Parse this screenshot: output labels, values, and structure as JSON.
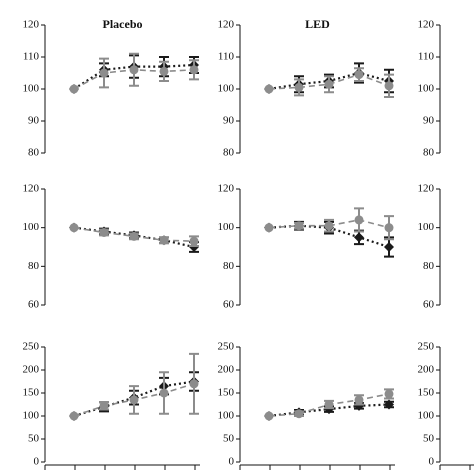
{
  "chart_data": [
    {
      "type": "line",
      "title": "Placebo",
      "ylim": [
        80,
        120
      ],
      "yticks": [
        80,
        90,
        100,
        110,
        120
      ],
      "series": [
        {
          "color": "#1a1a1a",
          "marker": "diamond",
          "dash": "dotted",
          "values": [
            100,
            106,
            107,
            107,
            107.5
          ],
          "errors": [
            0,
            2,
            3.5,
            3,
            2.5
          ]
        },
        {
          "color": "#8c8c8c",
          "marker": "circle",
          "dash": "dashed",
          "values": [
            100,
            105,
            106,
            105.5,
            106
          ],
          "errors": [
            0,
            4.5,
            5,
            3,
            3
          ]
        }
      ]
    },
    {
      "type": "line",
      "title": "LED",
      "ylim": [
        80,
        120
      ],
      "yticks": [
        80,
        90,
        100,
        110,
        120
      ],
      "series": [
        {
          "color": "#1a1a1a",
          "marker": "diamond",
          "dash": "dotted",
          "values": [
            100,
            101.5,
            102.5,
            105,
            102.5
          ],
          "errors": [
            0,
            2.5,
            2,
            3,
            3.5
          ]
        },
        {
          "color": "#8c8c8c",
          "marker": "circle",
          "dash": "dashed",
          "values": [
            100,
            100.5,
            101.5,
            104.5,
            101
          ],
          "errors": [
            0,
            2.5,
            2.5,
            2,
            3.5
          ]
        }
      ]
    },
    {
      "type": "axis",
      "ylim": [
        80,
        120
      ],
      "yticks": [
        80,
        90,
        100,
        110,
        120
      ]
    },
    {
      "type": "line",
      "ylim": [
        60,
        120
      ],
      "yticks": [
        60,
        80,
        100,
        120
      ],
      "series": [
        {
          "color": "#1a1a1a",
          "marker": "diamond",
          "dash": "dotted",
          "values": [
            100,
            98,
            96,
            93.5,
            90
          ],
          "errors": [
            0,
            1.5,
            1.5,
            1.5,
            2.5
          ]
        },
        {
          "color": "#8c8c8c",
          "marker": "circle",
          "dash": "dashed",
          "values": [
            100,
            97.5,
            95.5,
            93.5,
            93
          ],
          "errors": [
            0,
            1.5,
            1.5,
            1.5,
            2.5
          ]
        }
      ]
    },
    {
      "type": "line",
      "ylim": [
        60,
        120
      ],
      "yticks": [
        60,
        80,
        100,
        120
      ],
      "series": [
        {
          "color": "#1a1a1a",
          "marker": "diamond",
          "dash": "dotted",
          "values": [
            100,
            101,
            100,
            95,
            90
          ],
          "errors": [
            0,
            2,
            3,
            3.5,
            5
          ]
        },
        {
          "color": "#8c8c8c",
          "marker": "circle",
          "dash": "dashed",
          "values": [
            100,
            101,
            101,
            104,
            100
          ],
          "errors": [
            0,
            1.5,
            3,
            6,
            6
          ]
        }
      ]
    },
    {
      "type": "axis",
      "ylim": [
        60,
        120
      ],
      "yticks": [
        60,
        80,
        100,
        120
      ]
    },
    {
      "type": "line",
      "ylim": [
        0,
        250
      ],
      "yticks": [
        0,
        50,
        100,
        150,
        200,
        250
      ],
      "series": [
        {
          "color": "#1a1a1a",
          "marker": "diamond",
          "dash": "dotted",
          "values": [
            100,
            120,
            140,
            165,
            175
          ],
          "errors": [
            0,
            10,
            15,
            18,
            20
          ]
        },
        {
          "color": "#8c8c8c",
          "marker": "circle",
          "dash": "dashed",
          "values": [
            100,
            122,
            135,
            150,
            170
          ],
          "errors": [
            0,
            8,
            30,
            45,
            65
          ]
        }
      ]
    },
    {
      "type": "line",
      "ylim": [
        0,
        250
      ],
      "yticks": [
        0,
        50,
        100,
        150,
        200,
        250
      ],
      "series": [
        {
          "color": "#1a1a1a",
          "marker": "diamond",
          "dash": "dotted",
          "values": [
            100,
            108,
            115,
            122,
            125
          ],
          "errors": [
            0,
            5,
            6,
            6,
            6
          ]
        },
        {
          "color": "#8c8c8c",
          "marker": "circle",
          "dash": "dashed",
          "values": [
            100,
            105,
            125,
            135,
            148
          ],
          "errors": [
            0,
            5,
            8,
            10,
            10
          ]
        }
      ]
    },
    {
      "type": "axis",
      "ylim": [
        0,
        250
      ],
      "yticks": [
        0,
        50,
        100,
        150,
        200,
        250
      ]
    }
  ]
}
